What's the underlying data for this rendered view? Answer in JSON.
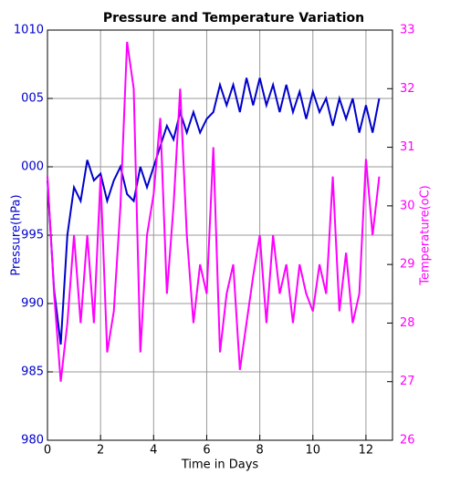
{
  "chart_data": {
    "type": "line",
    "title": "Pressure and Temperature Variation",
    "x_label": "Time in Days",
    "y_label": "Pressure(hPa)",
    "y2_label": "Temperature(oC)",
    "x": [
      0,
      0.25,
      0.5,
      0.75,
      1,
      1.25,
      1.5,
      1.75,
      2,
      2.25,
      2.5,
      2.75,
      3,
      3.25,
      3.5,
      3.75,
      4,
      4.25,
      4.5,
      4.75,
      5,
      5.25,
      5.5,
      5.75,
      6,
      6.25,
      6.5,
      6.75,
      7,
      7.25,
      7.5,
      7.75,
      8,
      8.25,
      8.5,
      8.75,
      9,
      9.25,
      9.5,
      9.75,
      10,
      10.25,
      10.5,
      10.75,
      11,
      11.25,
      11.5,
      11.75,
      12,
      12.25,
      12.5
    ],
    "series": [
      {
        "name": "Pressure",
        "color": "#0000cc",
        "axis": "y",
        "values": [
          999,
          991,
          987,
          995,
          998.5,
          997.5,
          1000.5,
          999,
          999.5,
          997.5,
          999,
          1000,
          998,
          997.5,
          1000,
          998.5,
          1000,
          1001.5,
          1003,
          1002,
          1004,
          1002.5,
          1004,
          1002.5,
          1003.5,
          1004,
          1006,
          1004.5,
          1006,
          1004,
          1006.5,
          1004.5,
          1006.5,
          1004.5,
          1006,
          1004,
          1006,
          1004,
          1005.5,
          1003.5,
          1005.5,
          1004,
          1005,
          1003,
          1005,
          1003.5,
          1005,
          1002.5,
          1004.5,
          1002.5,
          1005
        ]
      },
      {
        "name": "Temperature",
        "color": "#ff00ff",
        "axis": "y2",
        "values": [
          30.5,
          28.5,
          27,
          28,
          29.5,
          28,
          29.5,
          28,
          30.5,
          27.5,
          28.2,
          30,
          32.8,
          32,
          27.5,
          29.5,
          30.2,
          31.5,
          28.5,
          30,
          32,
          29.5,
          28,
          29,
          28.5,
          31,
          27.5,
          28.5,
          29,
          27.2,
          28,
          28.8,
          29.5,
          28,
          29.5,
          28.5,
          29,
          28,
          29,
          28.5,
          28.2,
          29,
          28.5,
          30.5,
          28.2,
          29.2,
          28,
          28.5,
          30.8,
          29.5,
          30.5
        ]
      }
    ],
    "xlim": [
      0,
      13
    ],
    "xticks": [
      0,
      2,
      4,
      6,
      8,
      10,
      12
    ],
    "ylim": [
      980,
      1010
    ],
    "yticks": [
      980,
      985,
      990,
      995,
      {
        "value": 1000,
        "label": "000"
      },
      {
        "value": 1005,
        "label": "005"
      },
      1010
    ],
    "y2lim": [
      26,
      33
    ],
    "y2ticks": [
      26,
      27,
      28,
      29,
      30,
      31,
      32,
      33
    ],
    "grid": true
  }
}
